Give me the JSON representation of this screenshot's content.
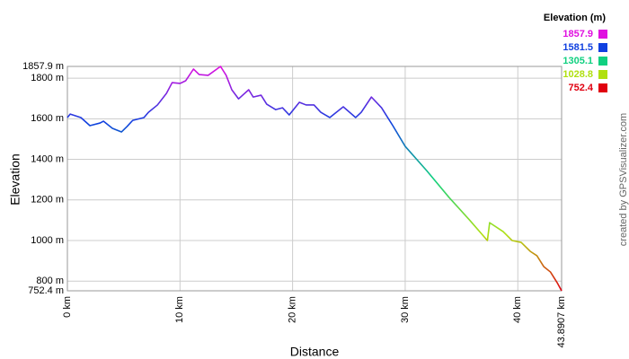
{
  "chart_data": {
    "type": "line",
    "x_label": "Distance",
    "y_label": "Elevation",
    "credit": "created by GPSVisualizer.com",
    "x": [
      0,
      0.25,
      1.2,
      2,
      2.9,
      3.2,
      4,
      4.8,
      5.3,
      5.8,
      6.8,
      7.2,
      8,
      8.8,
      9.3,
      10,
      10.5,
      11.2,
      11.7,
      12.5,
      13.6,
      14.1,
      14.6,
      15.2,
      16.1,
      16.5,
      17.2,
      17.7,
      18.5,
      19.1,
      19.7,
      20.6,
      21.2,
      21.9,
      22.5,
      23.3,
      24.5,
      25.6,
      26.1,
      27,
      27.9,
      28.9,
      30,
      31.9,
      33.9,
      35.7,
      37.3,
      37.5,
      38.7,
      39.5,
      40.3,
      41.1,
      41.7,
      42.3,
      42.9,
      43.5,
      43.8907
    ],
    "values": [
      1606,
      1623,
      1606,
      1566,
      1579,
      1588,
      1553,
      1535,
      1562,
      1592,
      1606,
      1632,
      1668,
      1725,
      1778,
      1774,
      1787,
      1845,
      1818,
      1814,
      1857.9,
      1814,
      1743,
      1698,
      1743,
      1707,
      1716,
      1672,
      1645,
      1654,
      1619,
      1681,
      1668,
      1668,
      1632,
      1606,
      1659,
      1606,
      1632,
      1707,
      1654,
      1566,
      1464,
      1345,
      1212,
      1102,
      1000,
      1088,
      1044,
      1000,
      991,
      947,
      925,
      872,
      845,
      792,
      752.4
    ],
    "xlim": [
      0,
      43.8907
    ],
    "xticks": [
      {
        "value": 0,
        "label": "0 km"
      },
      {
        "value": 10,
        "label": "10 km"
      },
      {
        "value": 20,
        "label": "20 km"
      },
      {
        "value": 30,
        "label": "30 km"
      },
      {
        "value": 40,
        "label": "40 km"
      },
      {
        "value": 43.8907,
        "label": "43.8907 km"
      }
    ],
    "ylim": [
      752.4,
      1857.9
    ],
    "yticks": [
      {
        "value": 752.4,
        "label": "752.4 m"
      },
      {
        "value": 800,
        "label": "800 m"
      },
      {
        "value": 1000,
        "label": "1000 m"
      },
      {
        "value": 1200,
        "label": "1200 m"
      },
      {
        "value": 1400,
        "label": "1400 m"
      },
      {
        "value": 1600,
        "label": "1600 m"
      },
      {
        "value": 1800,
        "label": "1800 m"
      },
      {
        "value": 1857.9,
        "label": "1857.9 m"
      }
    ],
    "grid": true,
    "color_scale": {
      "title": "Elevation (m)",
      "stops": [
        {
          "value": 1857.9,
          "color": "#e010e0"
        },
        {
          "value": 1581.5,
          "color": "#1040e0"
        },
        {
          "value": 1305.1,
          "color": "#10d080"
        },
        {
          "value": 1028.8,
          "color": "#b0e010"
        },
        {
          "value": 752.4,
          "color": "#e00010"
        }
      ]
    }
  }
}
